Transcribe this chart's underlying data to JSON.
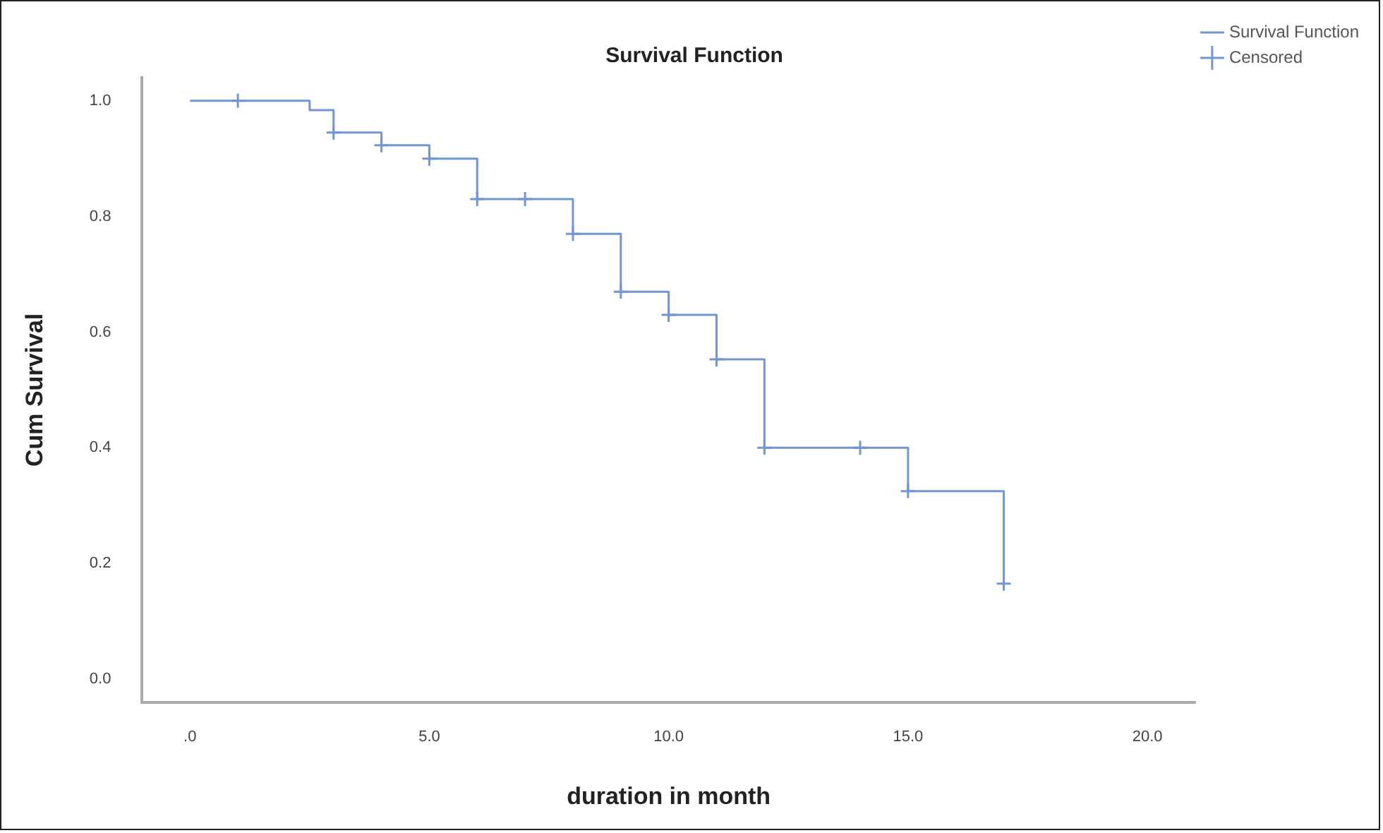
{
  "chart_data": {
    "type": "step",
    "title": "Survival Function",
    "xlabel": "duration in month",
    "ylabel": "Cum Survival",
    "series": [
      {
        "name": "Survival Function",
        "color": "#7097d3",
        "x": [
          0,
          2.5,
          3,
          4,
          5,
          6,
          8,
          9,
          10,
          11,
          12,
          15,
          17
        ],
        "values": [
          1.0,
          0.984,
          0.945,
          0.923,
          0.9,
          0.83,
          0.77,
          0.67,
          0.63,
          0.553,
          0.4,
          0.325,
          0.165
        ]
      },
      {
        "name": "Censored",
        "type": "scatter",
        "marker": "cross",
        "color": "#7097d3",
        "x": [
          1,
          3,
          4,
          5,
          6,
          7,
          8,
          9,
          10,
          11,
          12,
          14,
          15,
          17
        ],
        "values": [
          1.0,
          0.945,
          0.923,
          0.9,
          0.83,
          0.83,
          0.77,
          0.67,
          0.63,
          0.553,
          0.4,
          0.4,
          0.325,
          0.165
        ]
      }
    ],
    "xlim": [
      -1,
      21
    ],
    "xticks": [
      {
        "value": 0,
        "label": ".0"
      },
      {
        "value": 5,
        "label": "5.0"
      },
      {
        "value": 10,
        "label": "10.0"
      },
      {
        "value": 15,
        "label": "15.0"
      },
      {
        "value": 20,
        "label": "20.0"
      }
    ],
    "ylim": [
      -0.04,
      1.04
    ],
    "yticks": [
      {
        "value": 0,
        "label": "0.0"
      },
      {
        "value": 0.2,
        "label": "0.2"
      },
      {
        "value": 0.4,
        "label": "0.4"
      },
      {
        "value": 0.6,
        "label": "0.6"
      },
      {
        "value": 0.8,
        "label": "0.8"
      },
      {
        "value": 1,
        "label": "1.0"
      }
    ],
    "grid": false,
    "legend": "top right"
  }
}
